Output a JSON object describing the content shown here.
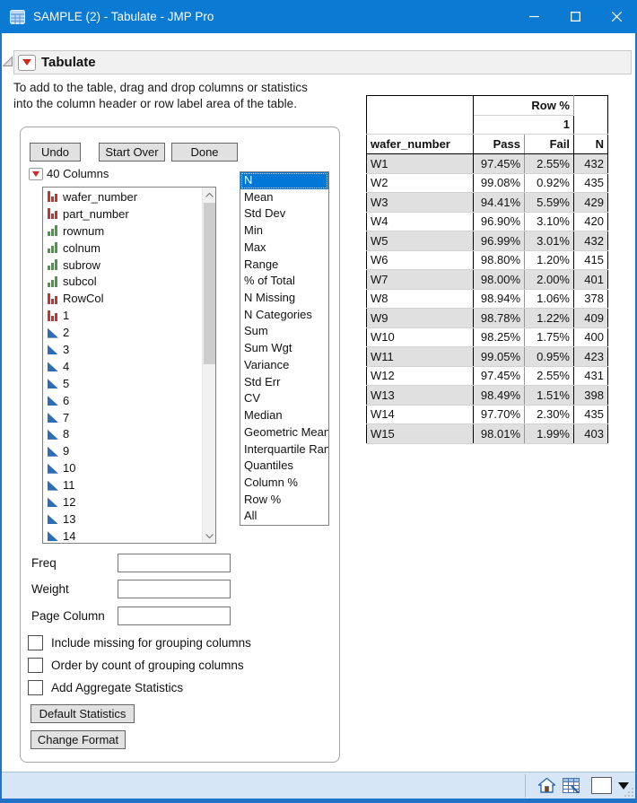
{
  "colors": {
    "titlebar": "#0a7ad2",
    "selection": "#0078d7",
    "row_stripe": "#e0e0e0",
    "status_bar": "#d7e6f6",
    "window_border": "#2272c8"
  },
  "window": {
    "title": "SAMPLE (2) - Tabulate - JMP Pro"
  },
  "report": {
    "title": "Tabulate",
    "instructions_line1": "To add to the table, drag and drop columns or statistics",
    "instructions_line2": "into the column header or row label area of the table."
  },
  "control_panel": {
    "undo_label": "Undo",
    "start_over_label": "Start Over",
    "done_label": "Done",
    "columns_heading": "40 Columns",
    "columns": [
      {
        "name": "wafer_number",
        "type": "nominal"
      },
      {
        "name": "part_number",
        "type": "nominal"
      },
      {
        "name": "rownum",
        "type": "ordinal"
      },
      {
        "name": "colnum",
        "type": "ordinal"
      },
      {
        "name": "subrow",
        "type": "ordinal"
      },
      {
        "name": "subcol",
        "type": "ordinal"
      },
      {
        "name": "RowCol",
        "type": "nominal"
      },
      {
        "name": "1",
        "type": "nominal"
      },
      {
        "name": "2",
        "type": "continuous"
      },
      {
        "name": "3",
        "type": "continuous"
      },
      {
        "name": "4",
        "type": "continuous"
      },
      {
        "name": "5",
        "type": "continuous"
      },
      {
        "name": "6",
        "type": "continuous"
      },
      {
        "name": "7",
        "type": "continuous"
      },
      {
        "name": "8",
        "type": "continuous"
      },
      {
        "name": "9",
        "type": "continuous"
      },
      {
        "name": "10",
        "type": "continuous"
      },
      {
        "name": "11",
        "type": "continuous"
      },
      {
        "name": "12",
        "type": "continuous"
      },
      {
        "name": "13",
        "type": "continuous"
      },
      {
        "name": "14",
        "type": "continuous"
      }
    ],
    "statistics": [
      "N",
      "Mean",
      "Std Dev",
      "Min",
      "Max",
      "Range",
      "% of Total",
      "N Missing",
      "N Categories",
      "Sum",
      "Sum Wgt",
      "Variance",
      "Std Err",
      "CV",
      "Median",
      "Geometric Mean",
      "Interquartile Range",
      "Quantiles",
      "Column %",
      "Row %",
      "All"
    ],
    "selected_statistic": "N",
    "freq_label": "Freq",
    "freq_value": "",
    "weight_label": "Weight",
    "weight_value": "",
    "page_column_label": "Page Column",
    "page_column_value": "",
    "checkboxes": [
      {
        "label": "Include missing for grouping columns",
        "checked": false
      },
      {
        "label": "Order by count of grouping columns",
        "checked": false
      },
      {
        "label": "Add Aggregate Statistics",
        "checked": false
      }
    ],
    "default_statistics_label": "Default Statistics",
    "change_format_label": "Change Format"
  },
  "result_table": {
    "group_header": "Row %",
    "group_value": "1",
    "columns": [
      "wafer_number",
      "Pass",
      "Fail",
      "N"
    ],
    "rows": [
      [
        "W1",
        "97.45%",
        "2.55%",
        "432"
      ],
      [
        "W2",
        "99.08%",
        "0.92%",
        "435"
      ],
      [
        "W3",
        "94.41%",
        "5.59%",
        "429"
      ],
      [
        "W4",
        "96.90%",
        "3.10%",
        "420"
      ],
      [
        "W5",
        "96.99%",
        "3.01%",
        "432"
      ],
      [
        "W6",
        "98.80%",
        "1.20%",
        "415"
      ],
      [
        "W7",
        "98.00%",
        "2.00%",
        "401"
      ],
      [
        "W8",
        "98.94%",
        "1.06%",
        "378"
      ],
      [
        "W9",
        "98.78%",
        "1.22%",
        "409"
      ],
      [
        "W10",
        "98.25%",
        "1.75%",
        "400"
      ],
      [
        "W11",
        "99.05%",
        "0.95%",
        "423"
      ],
      [
        "W12",
        "97.45%",
        "2.55%",
        "431"
      ],
      [
        "W13",
        "98.49%",
        "1.51%",
        "398"
      ],
      [
        "W14",
        "97.70%",
        "2.30%",
        "435"
      ],
      [
        "W15",
        "98.01%",
        "1.99%",
        "403"
      ]
    ]
  },
  "status_bar": {
    "icons": [
      "home-icon",
      "data-grid-icon",
      "window-selector-button",
      "dropdown-triangle-icon",
      "resize-grip"
    ]
  }
}
